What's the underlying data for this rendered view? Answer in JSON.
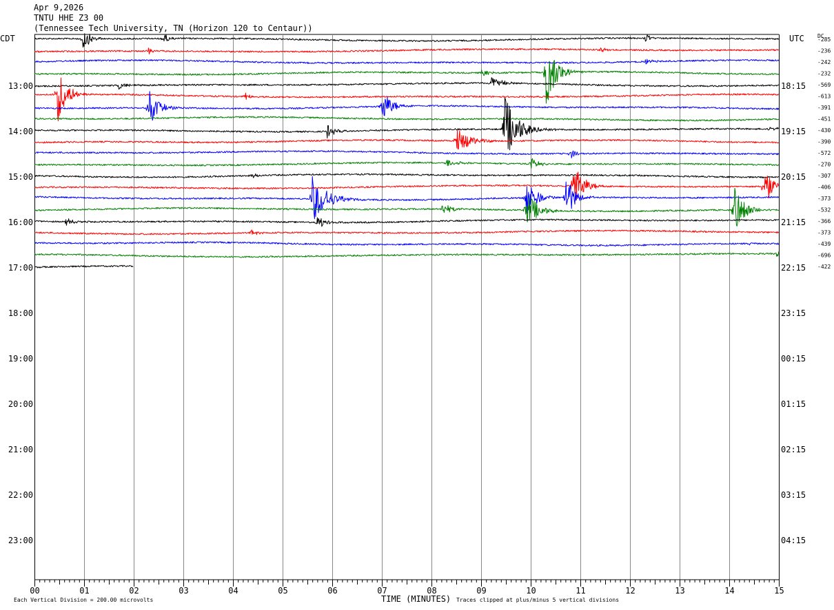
{
  "header": {
    "date": "Apr 9,2026",
    "station": "TNTU HHE Z3 00",
    "location": "(Tennessee Tech University, TN (Horizon 120 to Centaur))"
  },
  "left_zone_label": "CDT",
  "right_zone_label": "UTC",
  "dc_label": "DC",
  "footer": {
    "scale": "Each Vertical Division =  200.00 microvolts",
    "clip": "Traces clipped at plus/minus 5 vertical divisions"
  },
  "chart_data": {
    "type": "line",
    "title": "TNTU HHE Z3 00",
    "xlabel": "TIME (MINUTES)",
    "ylabel": "",
    "x_tick_labels": [
      "00",
      "01",
      "02",
      "03",
      "04",
      "05",
      "06",
      "07",
      "08",
      "09",
      "10",
      "11",
      "12",
      "13",
      "14",
      "15"
    ],
    "xlim": [
      0,
      15
    ],
    "left_hour_labels": [
      "13:00",
      "14:00",
      "15:00",
      "16:00",
      "17:00",
      "18:00",
      "19:00",
      "20:00",
      "21:00",
      "22:00",
      "23:00"
    ],
    "right_hour_labels": [
      "18:15",
      "19:15",
      "20:15",
      "21:15",
      "22:15",
      "23:15",
      "00:15",
      "01:15",
      "02:15",
      "03:15",
      "04:15"
    ],
    "trace_colors": [
      "#000000",
      "#ff0000",
      "#0000ff",
      "#008000"
    ],
    "traces": [
      {
        "color": "#000000",
        "dc": "-285",
        "events": [
          {
            "t": 0.95,
            "amp": 20,
            "dur": 0.4
          },
          {
            "t": 2.6,
            "amp": 8,
            "dur": 0.3
          },
          {
            "t": 12.3,
            "amp": 6,
            "dur": 0.3
          }
        ]
      },
      {
        "color": "#ff0000",
        "dc": "-236",
        "events": [
          {
            "t": 2.3,
            "amp": 5,
            "dur": 0.2
          },
          {
            "t": 11.4,
            "amp": 4,
            "dur": 0.3
          }
        ]
      },
      {
        "color": "#0000ff",
        "dc": "-242",
        "events": [
          {
            "t": 12.3,
            "amp": 5,
            "dur": 0.4
          }
        ]
      },
      {
        "color": "#008000",
        "dc": "-232",
        "events": [
          {
            "t": 9.0,
            "amp": 6,
            "dur": 0.4
          },
          {
            "t": 10.3,
            "amp": 55,
            "dur": 0.5
          }
        ]
      },
      {
        "color": "#000000",
        "dc": "-569",
        "events": [
          {
            "t": 1.7,
            "amp": 5,
            "dur": 0.6
          },
          {
            "t": 9.2,
            "amp": 12,
            "dur": 0.5
          }
        ]
      },
      {
        "color": "#ff0000",
        "dc": "-613",
        "events": [
          {
            "t": 0.45,
            "amp": 45,
            "dur": 0.5
          },
          {
            "t": 4.25,
            "amp": 7,
            "dur": 0.2
          }
        ]
      },
      {
        "color": "#0000ff",
        "dc": "-391",
        "events": [
          {
            "t": 2.3,
            "amp": 30,
            "dur": 0.5
          },
          {
            "t": 7.0,
            "amp": 25,
            "dur": 0.5
          }
        ]
      },
      {
        "color": "#008000",
        "dc": "-451",
        "events": []
      },
      {
        "color": "#000000",
        "dc": "-430",
        "events": [
          {
            "t": 5.9,
            "amp": 10,
            "dur": 0.4
          },
          {
            "t": 9.45,
            "amp": 55,
            "dur": 0.7
          },
          {
            "t": 14.8,
            "amp": 5,
            "dur": 0.4
          }
        ]
      },
      {
        "color": "#ff0000",
        "dc": "-390",
        "events": [
          {
            "t": 8.5,
            "amp": 22,
            "dur": 0.7
          }
        ]
      },
      {
        "color": "#0000ff",
        "dc": "-572",
        "events": [
          {
            "t": 10.8,
            "amp": 8,
            "dur": 0.3
          }
        ]
      },
      {
        "color": "#008000",
        "dc": "-270",
        "events": [
          {
            "t": 8.3,
            "amp": 6,
            "dur": 0.6
          },
          {
            "t": 10.0,
            "amp": 10,
            "dur": 0.4
          }
        ]
      },
      {
        "color": "#000000",
        "dc": "-307",
        "events": [
          {
            "t": 4.4,
            "amp": 6,
            "dur": 0.2
          }
        ]
      },
      {
        "color": "#ff0000",
        "dc": "-406",
        "events": [
          {
            "t": 10.85,
            "amp": 40,
            "dur": 0.5
          },
          {
            "t": 14.7,
            "amp": 35,
            "dur": 0.4
          }
        ]
      },
      {
        "color": "#0000ff",
        "dc": "-373",
        "events": [
          {
            "t": 5.6,
            "amp": 35,
            "dur": 0.8
          },
          {
            "t": 9.9,
            "amp": 35,
            "dur": 0.5
          },
          {
            "t": 10.7,
            "amp": 40,
            "dur": 0.4
          }
        ]
      },
      {
        "color": "#008000",
        "dc": "-532",
        "events": [
          {
            "t": 8.2,
            "amp": 8,
            "dur": 0.6
          },
          {
            "t": 9.9,
            "amp": 30,
            "dur": 0.6
          },
          {
            "t": 14.1,
            "amp": 40,
            "dur": 0.5
          }
        ]
      },
      {
        "color": "#000000",
        "dc": "-366",
        "events": [
          {
            "t": 0.6,
            "amp": 6,
            "dur": 0.5
          },
          {
            "t": 5.7,
            "amp": 10,
            "dur": 0.4
          }
        ]
      },
      {
        "color": "#ff0000",
        "dc": "-373",
        "events": [
          {
            "t": 4.35,
            "amp": 6,
            "dur": 0.3
          }
        ]
      },
      {
        "color": "#0000ff",
        "dc": "-439",
        "events": [
          {
            "t": 14.4,
            "amp": 4,
            "dur": 0.2
          }
        ]
      },
      {
        "color": "#008000",
        "dc": "-696",
        "events": [
          {
            "t": 14.95,
            "amp": 6,
            "dur": 0.2
          }
        ]
      },
      {
        "color": "#000000",
        "dc": "-422",
        "end": 2.0,
        "events": []
      }
    ]
  }
}
